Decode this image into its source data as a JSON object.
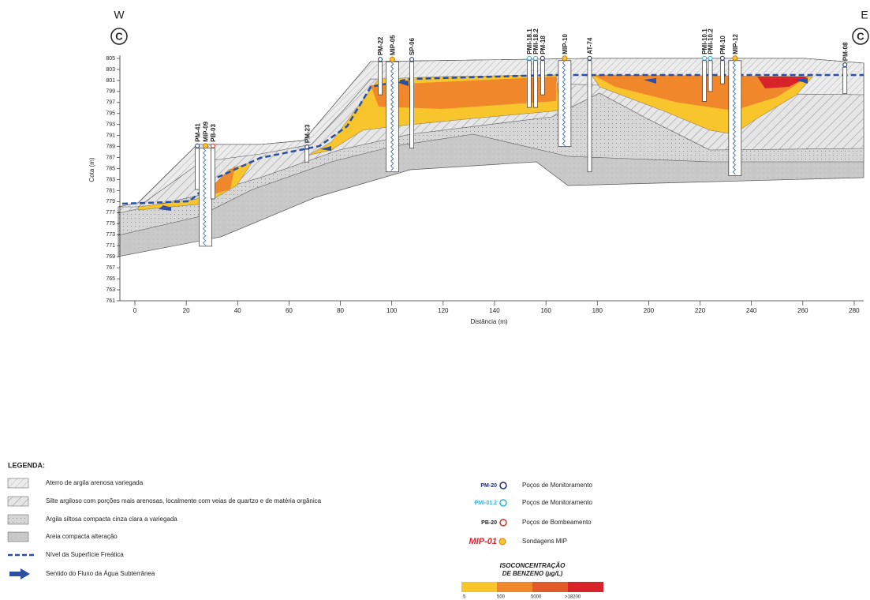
{
  "header": {
    "west": "W",
    "east": "E",
    "section": "C"
  },
  "axes": {
    "y_label": "Cota (m)",
    "yticks": [
      805,
      803,
      801,
      799,
      797,
      795,
      793,
      791,
      789,
      787,
      785,
      783,
      781,
      779,
      777,
      775,
      773,
      771,
      769,
      767,
      765,
      763,
      761
    ],
    "x_label": "Distância (m)",
    "xticks": [
      0,
      20,
      40,
      60,
      80,
      100,
      120,
      140,
      160,
      180,
      200,
      220,
      240,
      260,
      280
    ]
  },
  "wells": [
    {
      "label": "PM-41",
      "x": 24.3,
      "top": 788.7,
      "bottom": 781.2
    },
    {
      "label": "MIP-09",
      "x": 27.5,
      "top": 788.7,
      "bottom": 770.9
    },
    {
      "label": "PB-03",
      "x": 30.4,
      "top": 788.7,
      "bottom": 779.5
    },
    {
      "label": "PM-23",
      "x": 67,
      "top": 788.5,
      "bottom": 786.2
    },
    {
      "label": "PM-22",
      "x": 95.5,
      "top": 804.4,
      "bottom": 798.4
    },
    {
      "label": "MIP-05",
      "x": 100.2,
      "top": 804.4,
      "bottom": 784.4
    },
    {
      "label": "SP-06",
      "x": 107.8,
      "top": 804.4,
      "bottom": 788.7
    },
    {
      "label": "PMI-18.1",
      "x": 153.5,
      "top": 804.6,
      "bottom": 796.1
    },
    {
      "label": "PMI-18.2",
      "x": 156,
      "top": 804.6,
      "bottom": 796.1
    },
    {
      "label": "PM-18",
      "x": 158.7,
      "top": 804.6,
      "bottom": 798.4
    },
    {
      "label": "MIP-10",
      "x": 167.3,
      "top": 804.6,
      "bottom": 789
    },
    {
      "label": "AT-74",
      "x": 177,
      "top": 804.6,
      "bottom": 784.4
    },
    {
      "label": "PMI-10.1",
      "x": 221.7,
      "top": 804.6,
      "bottom": 797.2
    },
    {
      "label": "PMI-10.2",
      "x": 224,
      "top": 804.6,
      "bottom": 799
    },
    {
      "label": "PM-10",
      "x": 228.7,
      "top": 804.6,
      "bottom": 800.4
    },
    {
      "label": "MIP-12",
      "x": 233.6,
      "top": 804.6,
      "bottom": 783.7
    },
    {
      "label": "PM-08",
      "x": 276.4,
      "top": 803.4,
      "bottom": 798.6
    }
  ],
  "legend": {
    "title": "LEGENDA:",
    "units": [
      "Aterro de argila arenosa variegada",
      "Silte argiloso com porções mais arenosas, localmente com veias de quartzo e de matéria orgânica",
      "Argila siltosa compacta cinza clara a variegada",
      "Areia compacta alteração",
      "Nível da Superfície Freática",
      "Sentido do Fluxo da Água Subterrânea"
    ],
    "wells": [
      {
        "code": "PM-20",
        "text": "Poços de Monitoramento"
      },
      {
        "code": "PMI-01.2",
        "text": "Poços de Monitoramento"
      },
      {
        "code": "PB-20",
        "text": "Poços de Bombeamento"
      },
      {
        "code": "MIP-01",
        "text": "Sondagens MIP"
      }
    ],
    "iso": {
      "title": [
        "ISOCONCENTRAÇÃO",
        "DE BENZENO (µg/L)"
      ],
      "colors": [
        "#f9c52d",
        "#f0882b",
        "#e05a2a",
        "#d9232b"
      ],
      "labels": [
        "5",
        "500",
        "5000",
        ">18200"
      ]
    }
  }
}
